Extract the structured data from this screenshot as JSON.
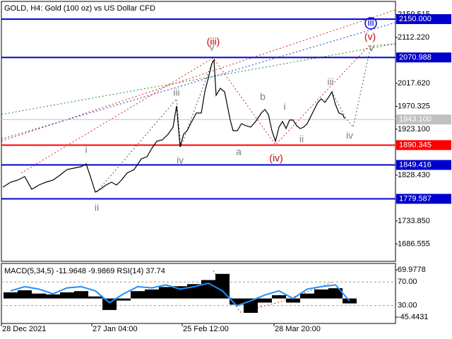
{
  "chart_data": [
    {
      "type": "line",
      "title": "GOLD, H4:  Gold (100 oz) vs US Dollar CFD",
      "xlim": [
        0,
        558
      ],
      "ylim": [
        1650.8,
        2189.4
      ],
      "yticks": [
        2159.515,
        {
          "value": 2112.22,
          "label": "2112.220"
        },
        {
          "value": 2017.62,
          "label": "2017.620"
        },
        1970.325,
        {
          "value": 1923.1,
          "label": "1923.100"
        },
        {
          "value": 1828.43,
          "label": "1828.430"
        },
        {
          "value": 1733.85,
          "label": "1733.850"
        },
        1686.555
      ],
      "x": [
        2,
        13,
        23,
        33,
        43,
        53,
        63,
        73,
        83,
        93,
        103,
        113,
        120,
        126,
        133,
        140,
        148,
        156,
        163,
        170,
        178,
        188,
        198,
        206,
        213,
        220,
        228,
        236,
        243,
        248,
        253,
        258,
        263,
        268,
        276,
        283,
        288,
        293,
        298,
        301,
        304,
        310,
        316,
        320,
        324,
        328,
        334,
        340,
        346,
        353,
        360,
        368,
        373,
        378,
        383,
        388,
        393,
        398,
        403,
        408,
        413,
        418,
        423,
        428,
        433,
        438,
        443,
        448,
        453,
        458,
        463,
        468,
        473,
        478,
        483,
        486
      ],
      "series": [
        {
          "color": "#000000",
          "values": [
            1803.7,
            1813.8,
            1818.2,
            1825.5,
            1799.3,
            1808.0,
            1813.8,
            1818.2,
            1828.4,
            1840.0,
            1843.0,
            1845.9,
            1851.7,
            1825.5,
            1793.5,
            1799.3,
            1808.0,
            1813.8,
            1808.0,
            1818.2,
            1832.8,
            1840.0,
            1861.9,
            1866.2,
            1883.7,
            1898.3,
            1901.2,
            1912.8,
            1927.4,
            1971.0,
            1886.6,
            1912.8,
            1920.1,
            1934.6,
            1956.5,
            1956.5,
            2000.1,
            2029.2,
            2058.3,
            2065.6,
            1992.9,
            2007.4,
            2000.1,
            1971.0,
            1941.9,
            1920.1,
            1920.1,
            1934.6,
            1930.3,
            1927.4,
            1939.0,
            1956.5,
            1963.7,
            1953.6,
            1920.1,
            1898.3,
            1927.4,
            1939.0,
            1924.5,
            1941.9,
            1941.9,
            1930.3,
            1924.5,
            1927.4,
            1934.6,
            1949.2,
            1963.7,
            1978.3,
            1985.6,
            1978.3,
            1988.5,
            2000.1,
            1973.9,
            1956.5,
            1953.6,
            1944.8
          ]
        }
      ],
      "levels": [
        {
          "value": 2150,
          "label": "2150.000",
          "color": "#0000cd"
        },
        {
          "value": 2070.988,
          "color": "#0000cd"
        },
        {
          "value": 1890.345,
          "color": "#ff0000"
        },
        {
          "value": 1849.416,
          "color": "#0000cd"
        },
        {
          "value": 1779.587,
          "color": "#0000cd"
        }
      ],
      "current_price": {
        "value": 1943.1,
        "label": "1943.100",
        "color": "#c0c0c0"
      },
      "annotations": [
        {
          "text": "i",
          "color": "#808080"
        },
        {
          "text": "ii",
          "color": "#808080"
        },
        {
          "text": "iii",
          "color": "#808080"
        },
        {
          "text": "iv",
          "color": "#808080"
        },
        {
          "text": "v",
          "color": "#808080"
        },
        {
          "text": "(iii)",
          "color": "#cc0000"
        },
        {
          "text": "a",
          "color": "#808080"
        },
        {
          "text": "b",
          "color": "#808080"
        },
        {
          "text": "(iv)",
          "color": "#cc0000"
        },
        {
          "text": "i",
          "color": "#808080"
        },
        {
          "text": "ii",
          "color": "#808080"
        },
        {
          "text": "iii",
          "color": "#808080"
        },
        {
          "text": "iv",
          "color": "#808080"
        },
        {
          "text": "(v)",
          "color": "#cc0000"
        },
        {
          "text": "v",
          "color": "#808080"
        },
        {
          "text": "iii",
          "color": "#0000cd"
        }
      ]
    },
    {
      "type": "macd",
      "title": "MACD(5,34,5) -11.9648 -9.9869 RSI(14) 37.74",
      "xlim": [
        0,
        558
      ],
      "ylim": [
        -60.9,
        83.8
      ],
      "yticks": [
        69.9778,
        -45.4431
      ],
      "y2lim": [
        0,
        100
      ],
      "y2ticks": [
        {
          "value": 70,
          "label": "70.00"
        },
        {
          "value": 30,
          "label": "30.00"
        }
      ],
      "xticks": [
        {
          "value": 0,
          "label": "28 Dec 2021"
        },
        {
          "value": 128,
          "label": "27 Jan 04:00"
        },
        {
          "value": 256,
          "label": "25 Feb 12:00"
        },
        {
          "value": 386,
          "label": "28 Mar 20:00"
        }
      ],
      "x": [
        3,
        23,
        43,
        63,
        83,
        103,
        123,
        143,
        163,
        183,
        203,
        223,
        243,
        263,
        283,
        303,
        323,
        343,
        363,
        383,
        403,
        423,
        443,
        463,
        483
      ],
      "series": [
        {
          "type": "bar",
          "color": "#000000",
          "values": [
            15,
            20,
            12,
            10,
            15,
            18,
            5,
            -28,
            -5,
            18,
            22,
            28,
            30,
            35,
            45,
            60,
            -15,
            -35,
            -10,
            8,
            -10,
            12,
            22,
            25,
            -12
          ]
        },
        {
          "type": "line",
          "axis": "y2",
          "color": "#1e90ff",
          "values": [
            55,
            62,
            58,
            50,
            60,
            62,
            55,
            35,
            50,
            62,
            60,
            65,
            58,
            62,
            68,
            55,
            30,
            38,
            48,
            55,
            42,
            58,
            62,
            65,
            38
          ]
        }
      ]
    }
  ]
}
